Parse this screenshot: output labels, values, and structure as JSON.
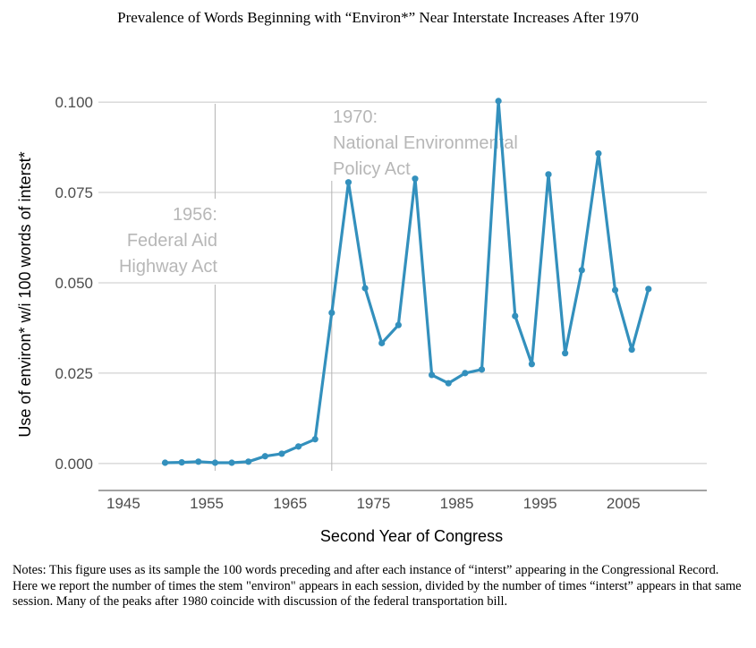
{
  "chart_data": {
    "type": "line",
    "title": "Prevalence of Words Beginning with “Environ*” Near Interstate Increases After 1970",
    "xlabel": "Second Year of Congress",
    "ylabel": "Use of environ* w/i 100 words of interst*",
    "xlim": [
      1942,
      2015
    ],
    "ylim": [
      -0.005,
      0.1025
    ],
    "x_ticks": [
      1945,
      1955,
      1965,
      1975,
      1985,
      1995,
      2005
    ],
    "y_ticks": [
      0.0,
      0.025,
      0.05,
      0.075,
      0.1
    ],
    "y_tick_labels": [
      "0.000",
      "0.025",
      "0.050",
      "0.075",
      "0.100"
    ],
    "grid": true,
    "x": [
      1950,
      1952,
      1954,
      1956,
      1958,
      1960,
      1962,
      1964,
      1966,
      1968,
      1970,
      1972,
      1974,
      1976,
      1978,
      1980,
      1982,
      1984,
      1986,
      1988,
      1990,
      1992,
      1994,
      1996,
      1998,
      2000,
      2002,
      2004,
      2006,
      2008
    ],
    "series": [
      {
        "values": [
          0.0002,
          0.0003,
          0.0005,
          0.0002,
          0.0002,
          0.0005,
          0.002,
          0.0027,
          0.0047,
          0.0067,
          0.0417,
          0.0778,
          0.0485,
          0.0333,
          0.0383,
          0.0788,
          0.0245,
          0.0222,
          0.025,
          0.026,
          0.1003,
          0.0408,
          0.0275,
          0.08,
          0.0305,
          0.0535,
          0.0858,
          0.048,
          0.0315,
          0.0483
        ],
        "color": "#3390bd"
      }
    ],
    "annotations": [
      {
        "x": 1956,
        "lines": [
          "1956:",
          "Federal Aid",
          "Highway Act"
        ]
      },
      {
        "x": 1970,
        "lines": [
          "1970:",
          "National Environmental",
          "Policy Act"
        ]
      }
    ]
  },
  "notes": "Notes: This figure uses as its sample the 100 words preceding and after each instance of “interst” appearing in the Congressional Record. Here we report the number of times the stem \"environ\" appears in each session, divided by the number of times “interst” appears in that same session. Many of the peaks after 1980 coincide with discussion of the federal transportation bill."
}
